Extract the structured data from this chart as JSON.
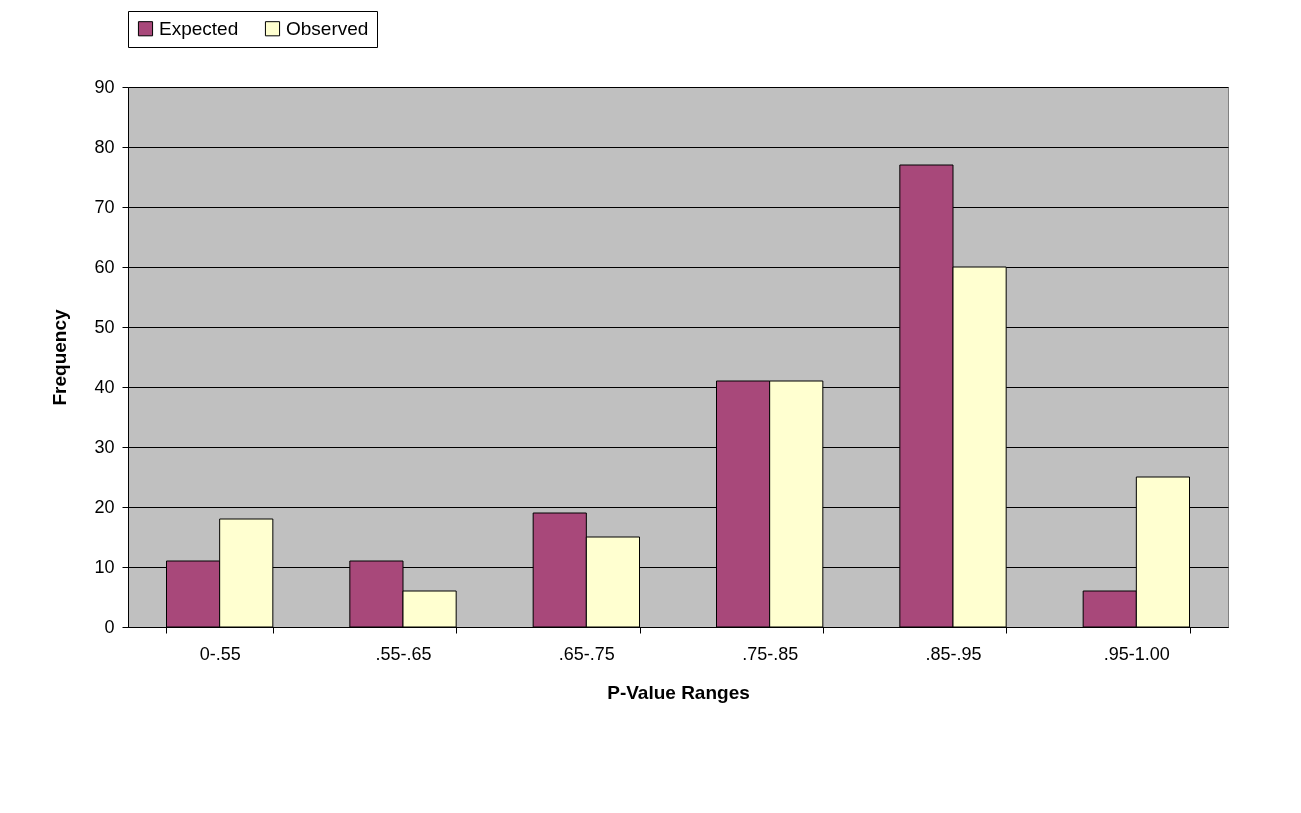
{
  "chart_data": {
    "type": "bar",
    "xlabel": "P-Value Ranges",
    "ylabel": "Frequency",
    "categories": [
      "0-.55",
      ".55-.65",
      ".65-.75",
      ".75-.85",
      ".85-.95",
      ".95-1.00"
    ],
    "series": [
      {
        "name": "Expected",
        "color": "#a8487a",
        "values": [
          11,
          11,
          19,
          41,
          77,
          6
        ]
      },
      {
        "name": "Observed",
        "color": "#ffffd0",
        "values": [
          18,
          6,
          15,
          41,
          60,
          25
        ]
      }
    ],
    "ylim": [
      0,
      90
    ],
    "yticks": [
      0,
      10,
      20,
      30,
      40,
      50,
      60,
      70,
      80,
      90
    ],
    "grid": "y",
    "legend": "top"
  }
}
